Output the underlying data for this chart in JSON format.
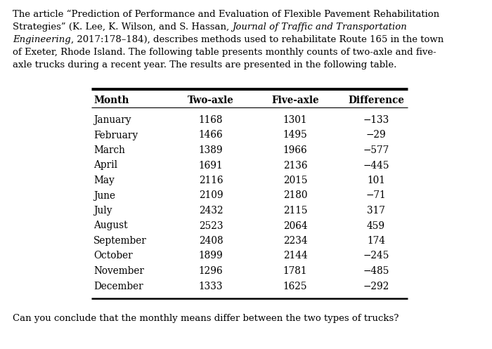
{
  "question_text": "Can you conclude that the monthly means differ between the two types of trucks?",
  "col_headers": [
    "Month",
    "Two-axle",
    "Five-axle",
    "Difference"
  ],
  "months": [
    "January",
    "February",
    "March",
    "April",
    "May",
    "June",
    "July",
    "August",
    "September",
    "October",
    "November",
    "December"
  ],
  "two_axle": [
    1168,
    1466,
    1389,
    1691,
    2116,
    2109,
    2432,
    2523,
    2408,
    1899,
    1296,
    1333
  ],
  "five_axle": [
    1301,
    1495,
    1966,
    2136,
    2015,
    2180,
    2115,
    2064,
    2234,
    2144,
    1781,
    1625
  ],
  "difference": [
    -133,
    -29,
    -577,
    -445,
    101,
    -71,
    317,
    459,
    174,
    -245,
    -485,
    -292
  ],
  "bg_color": "#ffffff",
  "text_color": "#000000",
  "font_size_body": 9.5,
  "font_size_table": 9.8,
  "para_line1": "The article “Prediction of Performance and Evaluation of Flexible Pavement Rehabilitation",
  "para_line2_reg": "Strategies” (K. Lee, K. Wilson, and S. Hassan, ",
  "para_line2_ital": "Journal of Traffic and Transportation",
  "para_line3_ital": "Engineering",
  "para_line3_reg": ", 2017:178–184), describes methods used to rehabilitate Route 165 in the town",
  "para_line4": "of Exeter, Rhode Island. The following table presents monthly counts of two-axle and five-",
  "para_line5": "axle trucks during a recent year. The results are presented in the following table."
}
